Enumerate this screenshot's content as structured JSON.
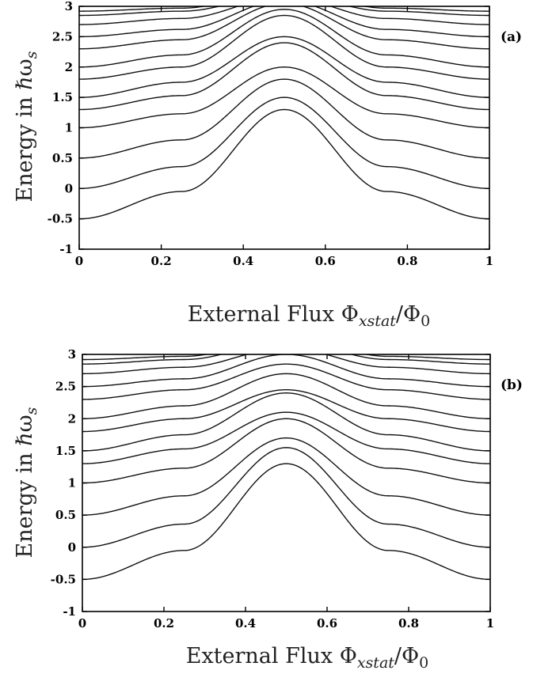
{
  "chart_data": [
    {
      "panel": "(a)",
      "type": "line",
      "xlabel": "External Flux Φ_{xstat}/Φ_0",
      "ylabel": "Energy in ℏω_s",
      "xlim": [
        0,
        1
      ],
      "ylim": [
        -1,
        3
      ],
      "x_ticks": [
        "0",
        "0.2",
        "0.4",
        "0.6",
        "0.8",
        "1"
      ],
      "y_ticks": [
        "-1",
        "-0.5",
        "0",
        "0.5",
        "1",
        "1.5",
        "2",
        "2.5",
        "3"
      ],
      "x_label_parts": {
        "main": "External Flux Φ",
        "sub1": "xstat",
        "mid": "/Φ",
        "sub2": "0"
      },
      "y_label_parts": {
        "main": "Energy in ℏω",
        "sub": "s"
      },
      "tag": "(a)",
      "gap_at_half": 0.14,
      "series": [
        {
          "x": [
            0,
            0.25,
            0.5,
            0.75,
            1
          ],
          "values": [
            -0.5,
            -0.05,
            1.3,
            -0.05,
            -0.5
          ]
        },
        {
          "x": [
            0,
            0.25,
            0.5,
            0.75,
            1
          ],
          "values": [
            0.0,
            0.36,
            1.5,
            0.36,
            0.0
          ]
        },
        {
          "x": [
            0,
            0.25,
            0.5,
            0.75,
            1
          ],
          "values": [
            0.5,
            0.8,
            1.8,
            0.8,
            0.5
          ]
        },
        {
          "x": [
            0,
            0.25,
            0.5,
            0.75,
            1
          ],
          "values": [
            1.0,
            1.23,
            2.0,
            1.23,
            1.0
          ]
        },
        {
          "x": [
            0,
            0.25,
            0.5,
            0.75,
            1
          ],
          "values": [
            1.3,
            1.53,
            2.4,
            1.53,
            1.3
          ]
        },
        {
          "x": [
            0,
            0.25,
            0.5,
            0.75,
            1
          ],
          "values": [
            1.5,
            1.75,
            2.5,
            1.75,
            1.5
          ]
        },
        {
          "x": [
            0,
            0.25,
            0.5,
            0.75,
            1
          ],
          "values": [
            1.8,
            2.0,
            2.85,
            2.0,
            1.8
          ]
        },
        {
          "x": [
            0,
            0.25,
            0.5,
            0.75,
            1
          ],
          "values": [
            2.0,
            2.2,
            2.95,
            2.2,
            2.0
          ]
        },
        {
          "x": [
            0,
            0.25,
            0.5,
            0.75,
            1
          ],
          "values": [
            2.3,
            2.45,
            3.05,
            2.45,
            2.3
          ]
        },
        {
          "x": [
            0,
            0.25,
            0.5,
            0.75,
            1
          ],
          "values": [
            2.5,
            2.62,
            3.1,
            2.62,
            2.5
          ]
        },
        {
          "x": [
            0,
            0.25,
            0.5,
            0.75,
            1
          ],
          "values": [
            2.7,
            2.8,
            3.15,
            2.8,
            2.7
          ]
        },
        {
          "x": [
            0,
            0.25,
            0.5,
            0.75,
            1
          ],
          "values": [
            2.85,
            2.92,
            3.2,
            2.92,
            2.85
          ]
        },
        {
          "x": [
            0,
            0.25,
            0.5,
            0.75,
            1
          ],
          "values": [
            2.92,
            2.97,
            3.25,
            2.97,
            2.92
          ]
        }
      ]
    },
    {
      "panel": "(b)",
      "type": "line",
      "xlabel": "External Flux Φ_{xstat}/Φ_0",
      "ylabel": "Energy in ℏω_s",
      "xlim": [
        0,
        1
      ],
      "ylim": [
        -1,
        3
      ],
      "x_ticks": [
        "0",
        "0.2",
        "0.4",
        "0.6",
        "0.8",
        "1"
      ],
      "y_ticks": [
        "-1",
        "-0.5",
        "0",
        "0.5",
        "1",
        "1.5",
        "2",
        "2.5",
        "3"
      ],
      "x_label_parts": {
        "main": "External Flux Φ",
        "sub1": "xstat",
        "mid": "/Φ",
        "sub2": "0"
      },
      "y_label_parts": {
        "main": "Energy in ℏω",
        "sub": "s"
      },
      "tag": "(b)",
      "gap_at_half": 0.16,
      "series": [
        {
          "x": [
            0,
            0.25,
            0.5,
            0.75,
            1
          ],
          "values": [
            -0.5,
            -0.05,
            1.3,
            -0.05,
            -0.5
          ]
        },
        {
          "x": [
            0,
            0.25,
            0.5,
            0.75,
            1
          ],
          "values": [
            0.0,
            0.36,
            1.55,
            0.36,
            0.0
          ]
        },
        {
          "x": [
            0,
            0.25,
            0.5,
            0.75,
            1
          ],
          "values": [
            0.5,
            0.8,
            1.7,
            0.8,
            0.5
          ]
        },
        {
          "x": [
            0,
            0.25,
            0.5,
            0.75,
            1
          ],
          "values": [
            1.0,
            1.23,
            2.0,
            1.23,
            1.0
          ]
        },
        {
          "x": [
            0,
            0.25,
            0.5,
            0.75,
            1
          ],
          "values": [
            1.3,
            1.53,
            2.1,
            1.53,
            1.3
          ]
        },
        {
          "x": [
            0,
            0.25,
            0.5,
            0.75,
            1
          ],
          "values": [
            1.5,
            1.75,
            2.4,
            1.75,
            1.5
          ]
        },
        {
          "x": [
            0,
            0.25,
            0.5,
            0.75,
            1
          ],
          "values": [
            1.8,
            2.0,
            2.45,
            2.0,
            1.8
          ]
        },
        {
          "x": [
            0,
            0.25,
            0.5,
            0.75,
            1
          ],
          "values": [
            2.0,
            2.2,
            2.7,
            2.2,
            2.0
          ]
        },
        {
          "x": [
            0,
            0.25,
            0.5,
            0.75,
            1
          ],
          "values": [
            2.3,
            2.45,
            2.85,
            2.45,
            2.3
          ]
        },
        {
          "x": [
            0,
            0.25,
            0.5,
            0.75,
            1
          ],
          "values": [
            2.5,
            2.62,
            3.0,
            2.62,
            2.5
          ]
        },
        {
          "x": [
            0,
            0.25,
            0.5,
            0.75,
            1
          ],
          "values": [
            2.7,
            2.8,
            3.1,
            2.8,
            2.7
          ]
        },
        {
          "x": [
            0,
            0.25,
            0.5,
            0.75,
            1
          ],
          "values": [
            2.85,
            2.92,
            3.2,
            2.92,
            2.85
          ]
        },
        {
          "x": [
            0,
            0.25,
            0.5,
            0.75,
            1
          ],
          "values": [
            2.92,
            2.97,
            3.25,
            2.97,
            2.92
          ]
        }
      ]
    }
  ]
}
